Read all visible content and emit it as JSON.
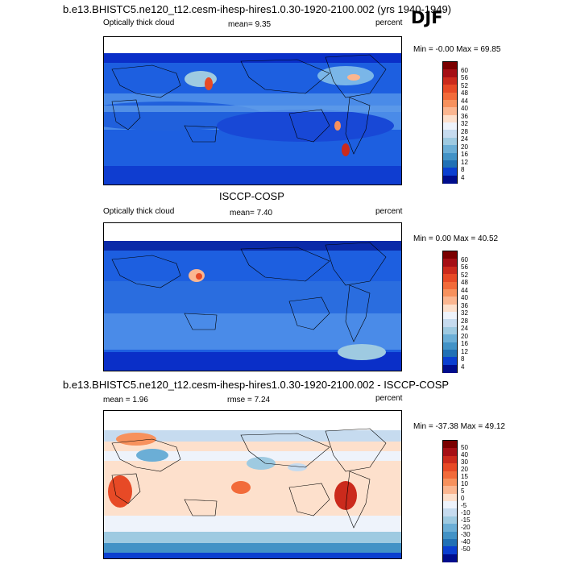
{
  "season": "DJF",
  "panels": [
    {
      "title": "b.e13.BHISTC5.ne120_t12.cesm-ihesp-hires1.0.30-1920-2100.002 (yrs 1940-1949)",
      "left_label": "Optically thick cloud",
      "center_label": "mean=  9.35",
      "right_label": "percent",
      "minmax": "Min =  -0.00 Max =  69.85",
      "colorbar_labels": [
        "60",
        "56",
        "52",
        "48",
        "44",
        "40",
        "36",
        "32",
        "28",
        "24",
        "20",
        "16",
        "12",
        "8",
        "4"
      ],
      "colorbar_colors": [
        "#7a0000",
        "#a50f15",
        "#cb2a1c",
        "#e74a26",
        "#f26b3a",
        "#f7915d",
        "#fbb690",
        "#fde0cc",
        "#eef3fb",
        "#c6dbef",
        "#9ecae1",
        "#6baed6",
        "#4292c6",
        "#2171b5",
        "#0b3fd0",
        "#000d8c"
      ]
    },
    {
      "title": "ISCCP-COSP",
      "left_label": "Optically thick cloud",
      "center_label": "mean=  7.40",
      "right_label": "percent",
      "minmax": "Min =   0.00 Max =  40.52",
      "colorbar_labels": [
        "60",
        "56",
        "52",
        "48",
        "44",
        "40",
        "36",
        "32",
        "28",
        "24",
        "20",
        "16",
        "12",
        "8",
        "4"
      ],
      "colorbar_colors": [
        "#7a0000",
        "#a50f15",
        "#cb2a1c",
        "#e74a26",
        "#f26b3a",
        "#f7915d",
        "#fbb690",
        "#fde0cc",
        "#eef3fb",
        "#c6dbef",
        "#9ecae1",
        "#6baed6",
        "#4292c6",
        "#2171b5",
        "#0b3fd0",
        "#000d8c"
      ]
    },
    {
      "title": "b.e13.BHISTC5.ne120_t12.cesm-ihesp-hires1.0.30-1920-2100.002 - ISCCP-COSP",
      "left_label": "mean =  1.96",
      "center_label": "rmse =  7.24",
      "right_label": "percent",
      "minmax": "Min = -37.38 Max =  49.12",
      "colorbar_labels": [
        "50",
        "40",
        "30",
        "20",
        "15",
        "10",
        "5",
        "0",
        "-5",
        "-10",
        "-15",
        "-20",
        "-30",
        "-40",
        "-50"
      ],
      "colorbar_colors": [
        "#7a0000",
        "#a50f15",
        "#cb2a1c",
        "#e74a26",
        "#f26b3a",
        "#f7915d",
        "#fbb690",
        "#fde0cc",
        "#eef3fb",
        "#c6dbef",
        "#9ecae1",
        "#6baed6",
        "#4292c6",
        "#2171b5",
        "#0b3fd0",
        "#000d8c"
      ]
    }
  ]
}
